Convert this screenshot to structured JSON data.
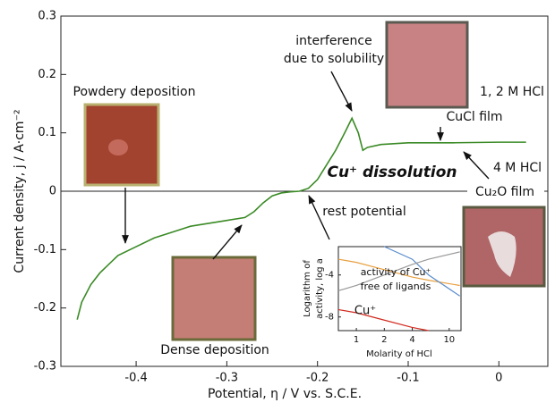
{
  "chart_data": [
    {
      "type": "line",
      "x_label": "Potential, η / V vs. S.C.E.",
      "y_label": "Current density, j / A·cm⁻²",
      "x": [
        -0.465,
        -0.46,
        -0.45,
        -0.44,
        -0.42,
        -0.4,
        -0.38,
        -0.36,
        -0.34,
        -0.32,
        -0.3,
        -0.28,
        -0.27,
        -0.26,
        -0.25,
        -0.24,
        -0.23,
        -0.22,
        -0.21,
        -0.2,
        -0.19,
        -0.18,
        -0.17,
        -0.162,
        -0.155,
        -0.15,
        -0.145,
        -0.13,
        -0.1,
        -0.05,
        0.0,
        0.03
      ],
      "series": [
        {
          "color": "#3a8a25",
          "values": [
            -0.22,
            -0.19,
            -0.16,
            -0.14,
            -0.11,
            -0.095,
            -0.08,
            -0.07,
            -0.06,
            -0.055,
            -0.05,
            -0.045,
            -0.035,
            -0.02,
            -0.008,
            -0.003,
            -0.001,
            0.0,
            0.005,
            0.02,
            0.045,
            0.07,
            0.1,
            0.125,
            0.1,
            0.07,
            0.075,
            0.08,
            0.083,
            0.083,
            0.084,
            0.084
          ]
        }
      ],
      "xlim": [
        -0.483,
        0.054
      ],
      "ylim": [
        -0.3,
        0.3
      ],
      "xticks": [
        -0.4,
        -0.3,
        -0.2,
        -0.1,
        0
      ],
      "yticks": [
        -0.3,
        -0.2,
        -0.1,
        0,
        0.1,
        0.2,
        0.3
      ],
      "annotations": [
        "interference",
        "due to solubility",
        "Powdery deposition",
        "1, 2 M HCl",
        "CuCl film",
        "Cu⁺ dissolution",
        "4 M HCl",
        "Cu₂O film",
        "rest potential",
        "Dense deposition"
      ]
    },
    {
      "type": "line",
      "x_log": true,
      "x_label": "Molarity of HCl",
      "y_label": [
        "Logarithm of",
        "activity, log a"
      ],
      "x": [
        0.64,
        1,
        2,
        4,
        6,
        13
      ],
      "series": [
        {
          "color": "#d22a1e",
          "values": [
            -7.3,
            -7.6,
            -8.3,
            -9.0,
            -9.3,
            null
          ]
        },
        {
          "color": "#e8a040",
          "values": [
            -2.5,
            -2.8,
            -3.5,
            -4.2,
            -4.5,
            -5.0
          ]
        },
        {
          "color": "#5a8ccc",
          "values": [
            null,
            null,
            -1.3,
            -2.5,
            -4.0,
            -6.0
          ]
        },
        {
          "color": "#999999",
          "values": [
            -5.5,
            -5.0,
            -4.0,
            -3.0,
            -2.5,
            -1.8
          ]
        }
      ],
      "xlim": [
        0.64,
        13.4
      ],
      "ylim": [
        -9.3,
        -1.3
      ],
      "xticks": [
        1,
        2,
        4,
        10
      ],
      "yticks": [
        -4,
        -8
      ],
      "annotations": [
        "activity of Cu⁺",
        "free of ligands",
        "Cu⁺"
      ]
    }
  ]
}
